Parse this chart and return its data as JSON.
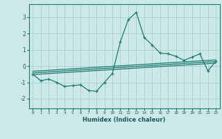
{
  "x_data": [
    0,
    1,
    2,
    3,
    4,
    5,
    6,
    7,
    8,
    9,
    10,
    11,
    12,
    13,
    14,
    15,
    16,
    17,
    18,
    19,
    20,
    21,
    22,
    23
  ],
  "y_main": [
    -0.5,
    -0.9,
    -0.8,
    -1.0,
    -1.25,
    -1.2,
    -1.15,
    -1.5,
    -1.55,
    -1.0,
    -0.45,
    1.5,
    2.85,
    3.3,
    1.75,
    1.3,
    0.8,
    0.75,
    0.6,
    0.35,
    0.55,
    0.75,
    -0.3,
    0.3
  ],
  "regression_lines": [
    {
      "x0": 0,
      "y0": -0.52,
      "x1": 23,
      "y1": 0.18
    },
    {
      "x0": 0,
      "y0": -0.42,
      "x1": 23,
      "y1": 0.28
    },
    {
      "x0": 0,
      "y0": -0.32,
      "x1": 23,
      "y1": 0.38
    }
  ],
  "line_color": "#1a7a6e",
  "bg_color": "#cce8e8",
  "grid_color": "#aacfcf",
  "xlabel": "Humidex (Indice chaleur)",
  "ylim": [
    -2.6,
    3.8
  ],
  "xlim": [
    -0.5,
    23.5
  ],
  "yticks": [
    -2,
    -1,
    0,
    1,
    2,
    3
  ],
  "xticks": [
    0,
    1,
    2,
    3,
    4,
    5,
    6,
    7,
    8,
    9,
    10,
    11,
    12,
    13,
    14,
    15,
    16,
    17,
    18,
    19,
    20,
    21,
    22,
    23
  ]
}
